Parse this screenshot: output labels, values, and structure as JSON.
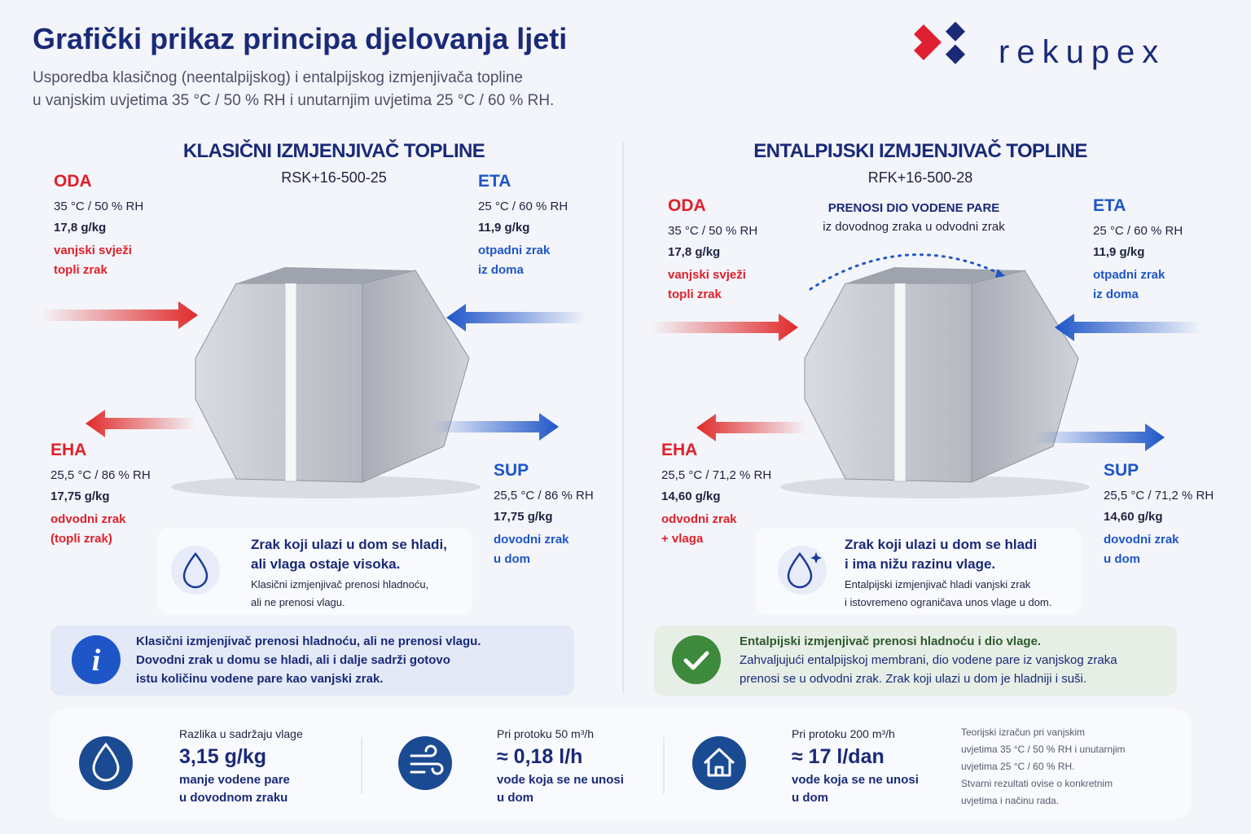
{
  "header": {
    "title": "Grafički prikaz principa djelovanja ljeti",
    "subtitle": [
      "Usporedba klasičnog (neentalpijskog) i entalpijskog izmjenjivača topline",
      "u vanjskim uvjetima 35 °C / 50 % RH i unutarnjim uvjetima 25 °C / 60 % RH."
    ],
    "logo": "rekupex"
  },
  "panels": [
    {
      "title": "KLASIČNI IZMJENJIVAČ TOPLINE",
      "model": "RSK+16-500-25",
      "streams": [
        {
          "code": "ODA",
          "lines": [
            "35 °C / 50 % RH",
            "17,8 g/kg"
          ],
          "desc": [
            "vanjski svježi",
            "topli zrak"
          ]
        },
        {
          "code": "ETA",
          "lines": [
            "25 °C / 60 % RH",
            "11,9 g/kg"
          ],
          "desc": [
            "otpadni zrak",
            "iz doma"
          ]
        },
        {
          "code": "EHA",
          "lines": [
            "25,5 °C / 86 % RH",
            "17,75 g/kg"
          ],
          "desc": [
            "odvodni zrak",
            "(topli zrak)"
          ]
        },
        {
          "code": "SUP",
          "lines": [
            "25,5 °C / 86 % RH",
            "17,75 g/kg"
          ],
          "desc": [
            "dovodni zrak",
            "u dom"
          ]
        }
      ],
      "note": {
        "title": [
          "Zrak koji ulazi u dom se hladi,",
          "ali vlaga ostaje visoka."
        ],
        "text": [
          "Klasični izmjenjivač prenosi hladnoću,",
          "ali ne prenosi vlagu."
        ]
      },
      "info": {
        "title": "Klasični izmjenjivač prenosi hladnoću, ali ne prenosi vlagu.",
        "text": [
          "Dovodni zrak u domu se hladi, ali i dalje sadrži gotovo",
          "istu količinu vodene pare kao vanjski zrak."
        ]
      }
    },
    {
      "title": "ENTALPIJSKI IZMJENJIVAČ TOPLINE",
      "model": "RFK+16-500-28",
      "transfer": {
        "title": "PRENOSI DIO VODENE PARE",
        "text": "iz dovodnog zraka u odvodni zrak"
      },
      "streams": [
        {
          "code": "ODA",
          "lines": [
            "35 °C / 50 % RH",
            "17,8 g/kg"
          ],
          "desc": [
            "vanjski svježi",
            "topli zrak"
          ]
        },
        {
          "code": "ETA",
          "lines": [
            "25 °C / 60 % RH",
            "11,9 g/kg"
          ],
          "desc": [
            "otpadni zrak",
            "iz doma"
          ]
        },
        {
          "code": "EHA",
          "lines": [
            "25,5 °C / 71,2 % RH",
            "14,60 g/kg"
          ],
          "desc": [
            "odvodni zrak",
            "+ vlaga"
          ]
        },
        {
          "code": "SUP",
          "lines": [
            "25,5 °C / 71,2 % RH",
            "14,60 g/kg"
          ],
          "desc": [
            "dovodni zrak",
            "u dom"
          ]
        }
      ],
      "note": {
        "title": [
          "Zrak koji ulazi u dom se hladi",
          "i ima nižu razinu vlage."
        ],
        "text": [
          "Entalpijski izmjenjivač hladi vanjski zrak",
          "i istovremeno ograničava unos vlage u dom."
        ]
      },
      "info": {
        "title": "Entalpijski izmjenjivač prenosi hladnoću i dio vlage.",
        "text": [
          "Zahvaljujući entalpijskoj membrani, dio vodene pare iz vanjskog zraka",
          "prenosi se u odvodni zrak. Zrak koji ulazi u dom je hladniji i suši."
        ]
      }
    }
  ],
  "stats": [
    {
      "label": "Razlika u sadržaju vlage",
      "value": "3,15 g/kg",
      "text": [
        "manje vodene pare",
        "u dovodnom zraku"
      ]
    },
    {
      "label": "Pri protoku 50 m³/h",
      "value": "≈ 0,18 l/h",
      "text": [
        "vode koja se ne unosi",
        "u dom"
      ]
    },
    {
      "label": "Pri protoku 200 m³/h",
      "value": "≈ 17 l/dan",
      "text": [
        "vode koja se ne unosi",
        "u dom"
      ]
    }
  ],
  "footnote": [
    "Teorijski izračun pri vanjskim",
    "uvjetima 35 °C / 50 % RH i unutarnjim",
    "uvjetima 25 °C / 60 % RH.",
    "Stvarni rezultati ovise o konkretnim",
    "uvjetima i načinu rada."
  ]
}
